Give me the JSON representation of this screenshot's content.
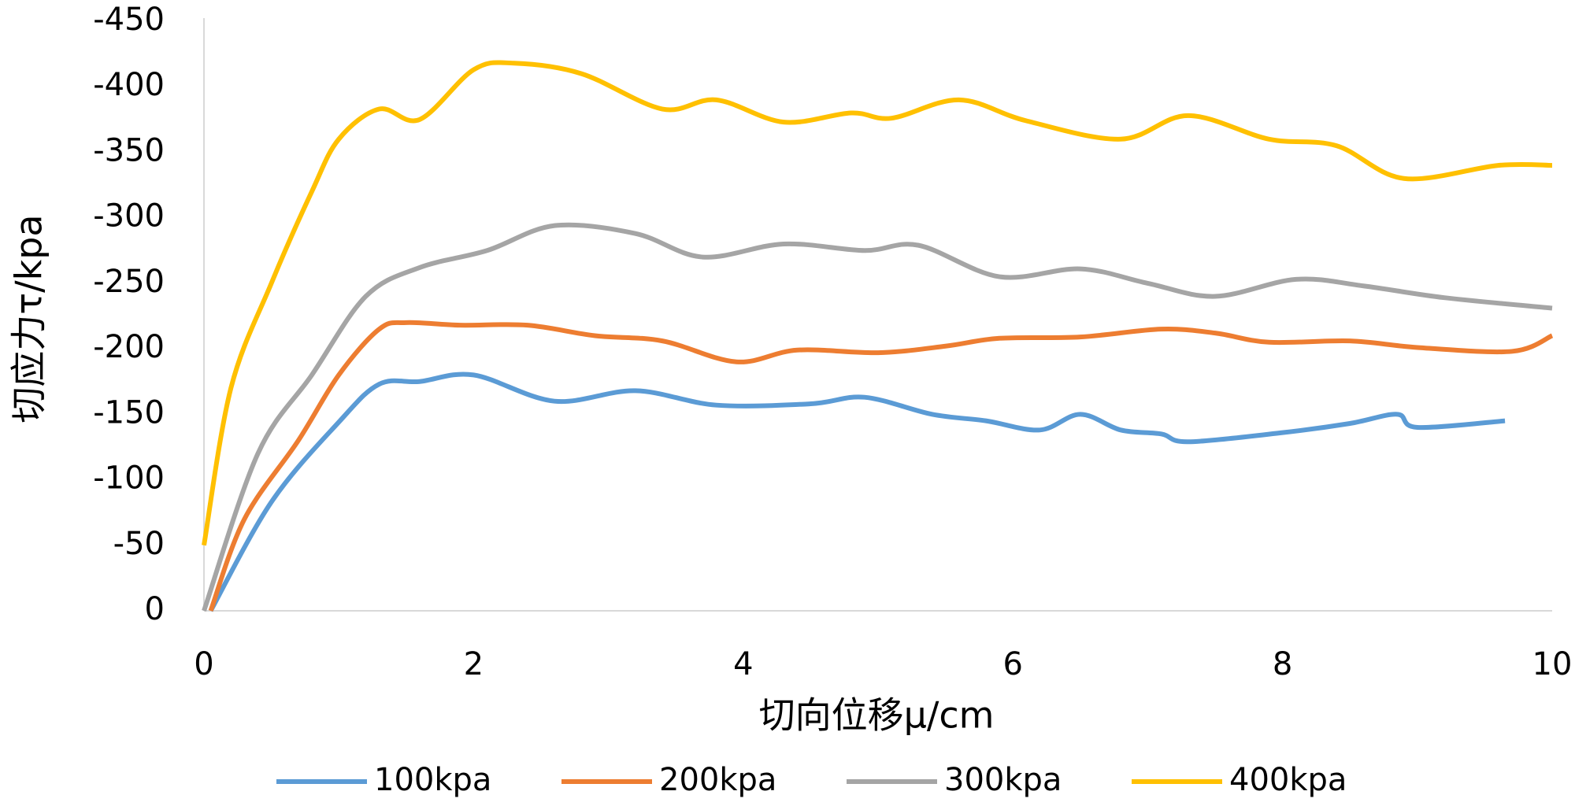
{
  "chart_data": {
    "type": "line",
    "x_label": "切向位移μ/cm",
    "y_label": "切应力τ/kpa",
    "xlim": [
      0,
      10
    ],
    "xticks": [
      0,
      2,
      4,
      6,
      8,
      10
    ],
    "ylim": [
      0,
      -450
    ],
    "yticks": [
      0,
      -50,
      -100,
      -150,
      -200,
      -250,
      -300,
      -350,
      -400,
      -450
    ],
    "smooth": true,
    "legend": "bottom",
    "series": [
      {
        "name": "100kpa",
        "color": "#5b9bd5",
        "x": [
          0.05,
          0.5,
          1.0,
          1.3,
          1.6,
          2.0,
          2.6,
          3.2,
          3.8,
          4.5,
          4.9,
          5.4,
          5.8,
          6.2,
          6.5,
          6.8,
          7.1,
          7.3,
          8.0,
          8.5,
          8.85,
          9.0,
          9.65
        ],
        "values": [
          0,
          -83,
          -144,
          -173,
          -175,
          -180,
          -160,
          -168,
          -157,
          -158,
          -163,
          -150,
          -145,
          -138,
          -150,
          -138,
          -135,
          -129,
          -136,
          -143,
          -150,
          -140,
          -145
        ]
      },
      {
        "name": "200kpa",
        "color": "#ed7d31",
        "x": [
          0.05,
          0.3,
          0.7,
          1.0,
          1.3,
          1.5,
          1.9,
          2.4,
          2.9,
          3.4,
          3.95,
          4.4,
          5.0,
          5.5,
          5.9,
          6.5,
          7.1,
          7.5,
          7.9,
          8.5,
          9.0,
          9.7,
          10.0
        ],
        "values": [
          0,
          -70,
          -130,
          -180,
          -215,
          -220,
          -218,
          -218,
          -210,
          -206,
          -190,
          -199,
          -197,
          -202,
          -208,
          -209,
          -215,
          -212,
          -205,
          -206,
          -201,
          -198,
          -210
        ]
      },
      {
        "name": "300kpa",
        "color": "#a5a5a5",
        "x": [
          0,
          0.4,
          0.8,
          1.2,
          1.6,
          2.1,
          2.6,
          3.2,
          3.7,
          4.3,
          4.9,
          5.3,
          5.9,
          6.5,
          7.0,
          7.5,
          8.1,
          8.6,
          9.2,
          10.0
        ],
        "values": [
          0,
          -120,
          -180,
          -240,
          -262,
          -275,
          -294,
          -288,
          -270,
          -280,
          -275,
          -279,
          -255,
          -261,
          -250,
          -240,
          -253,
          -248,
          -239,
          -231
        ]
      },
      {
        "name": "400kpa",
        "color": "#ffc000",
        "x": [
          0,
          0.2,
          0.5,
          0.8,
          1.0,
          1.3,
          1.6,
          2.0,
          2.3,
          2.8,
          3.4,
          3.8,
          4.3,
          4.8,
          5.1,
          5.6,
          6.1,
          6.8,
          7.3,
          7.9,
          8.4,
          8.9,
          9.6,
          10.0
        ],
        "values": [
          -50,
          -170,
          -250,
          -320,
          -360,
          -383,
          -375,
          -413,
          -418,
          -410,
          -383,
          -390,
          -373,
          -380,
          -376,
          -390,
          -374,
          -360,
          -378,
          -360,
          -355,
          -330,
          -340,
          -340
        ]
      }
    ]
  }
}
